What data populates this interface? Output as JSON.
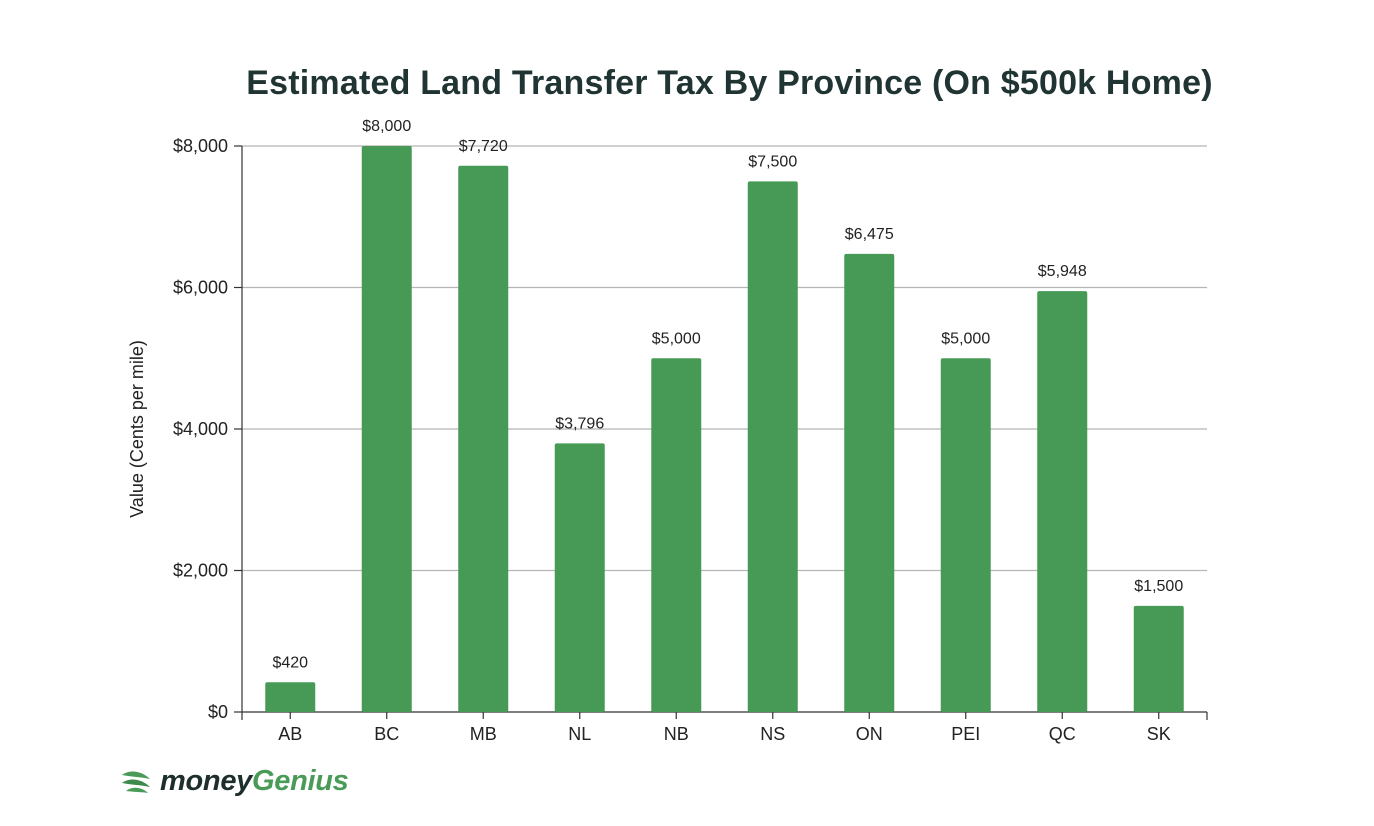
{
  "chart_data": {
    "type": "bar",
    "title": "Estimated Land Transfer Tax By Province (On $500k Home)",
    "ylabel": "Value (Cents per mile)",
    "xlabel": "",
    "categories": [
      "AB",
      "BC",
      "MB",
      "NL",
      "NB",
      "NS",
      "ON",
      "PEI",
      "QC",
      "SK"
    ],
    "values": [
      420,
      8000,
      7720,
      3796,
      5000,
      7500,
      6475,
      5000,
      5948,
      1500
    ],
    "data_labels": [
      "$420",
      "$8,000",
      "$7,720",
      "$3,796",
      "$5,000",
      "$7,500",
      "$6,475",
      "$5,000",
      "$5,948",
      "$1,500"
    ],
    "ylim": [
      0,
      8000
    ],
    "yticks": [
      0,
      2000,
      4000,
      6000,
      8000
    ],
    "ytick_labels": [
      "$0",
      "$2,000",
      "$4,000",
      "$6,000",
      "$8,000"
    ],
    "grid": true,
    "bar_color": "#479a56"
  },
  "brand": {
    "name_part1": "money",
    "name_part2": "Genius",
    "logo_icon": "leaf-icon",
    "colors": {
      "dark": "#1e2e2d",
      "green": "#4a9b58"
    }
  }
}
